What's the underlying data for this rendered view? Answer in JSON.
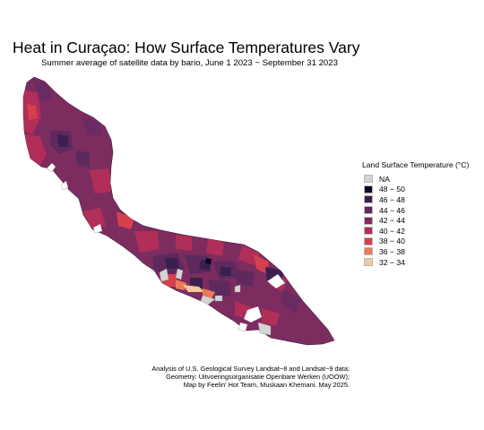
{
  "title": "Heat in Curaçao: How Surface Temperatures Vary",
  "subtitle": "Summer average of satellite data by bario, June 1 2023 − September 31 2023",
  "legend": {
    "title": "Land Surface Temperature (°C)",
    "items": [
      {
        "label": "NA",
        "color": "#d4d4d4"
      },
      {
        "label": "48 − 50",
        "color": "#0c0524"
      },
      {
        "label": "46 − 48",
        "color": "#3b1f4f"
      },
      {
        "label": "44 − 46",
        "color": "#5e2a5e"
      },
      {
        "label": "42 − 44",
        "color": "#7d2c60"
      },
      {
        "label": "40 − 42",
        "color": "#b02e58"
      },
      {
        "label": "38 − 40",
        "color": "#d6404c"
      },
      {
        "label": "36 − 38",
        "color": "#ea7a5a"
      },
      {
        "label": "32 − 34",
        "color": "#f3c99a"
      }
    ]
  },
  "caption": [
    "Analysis of U.S. Geological Survey Landsat−8 and Landsat−9 data;",
    "Geometry: Uitvoeringsorganisatie Openbare Werken (UOOW);",
    "Map by Feelin' Hot Team, Muskaan Khemani. May 2025."
  ],
  "map": {
    "island": "Curaçao",
    "base_color": "#7d2c60"
  }
}
